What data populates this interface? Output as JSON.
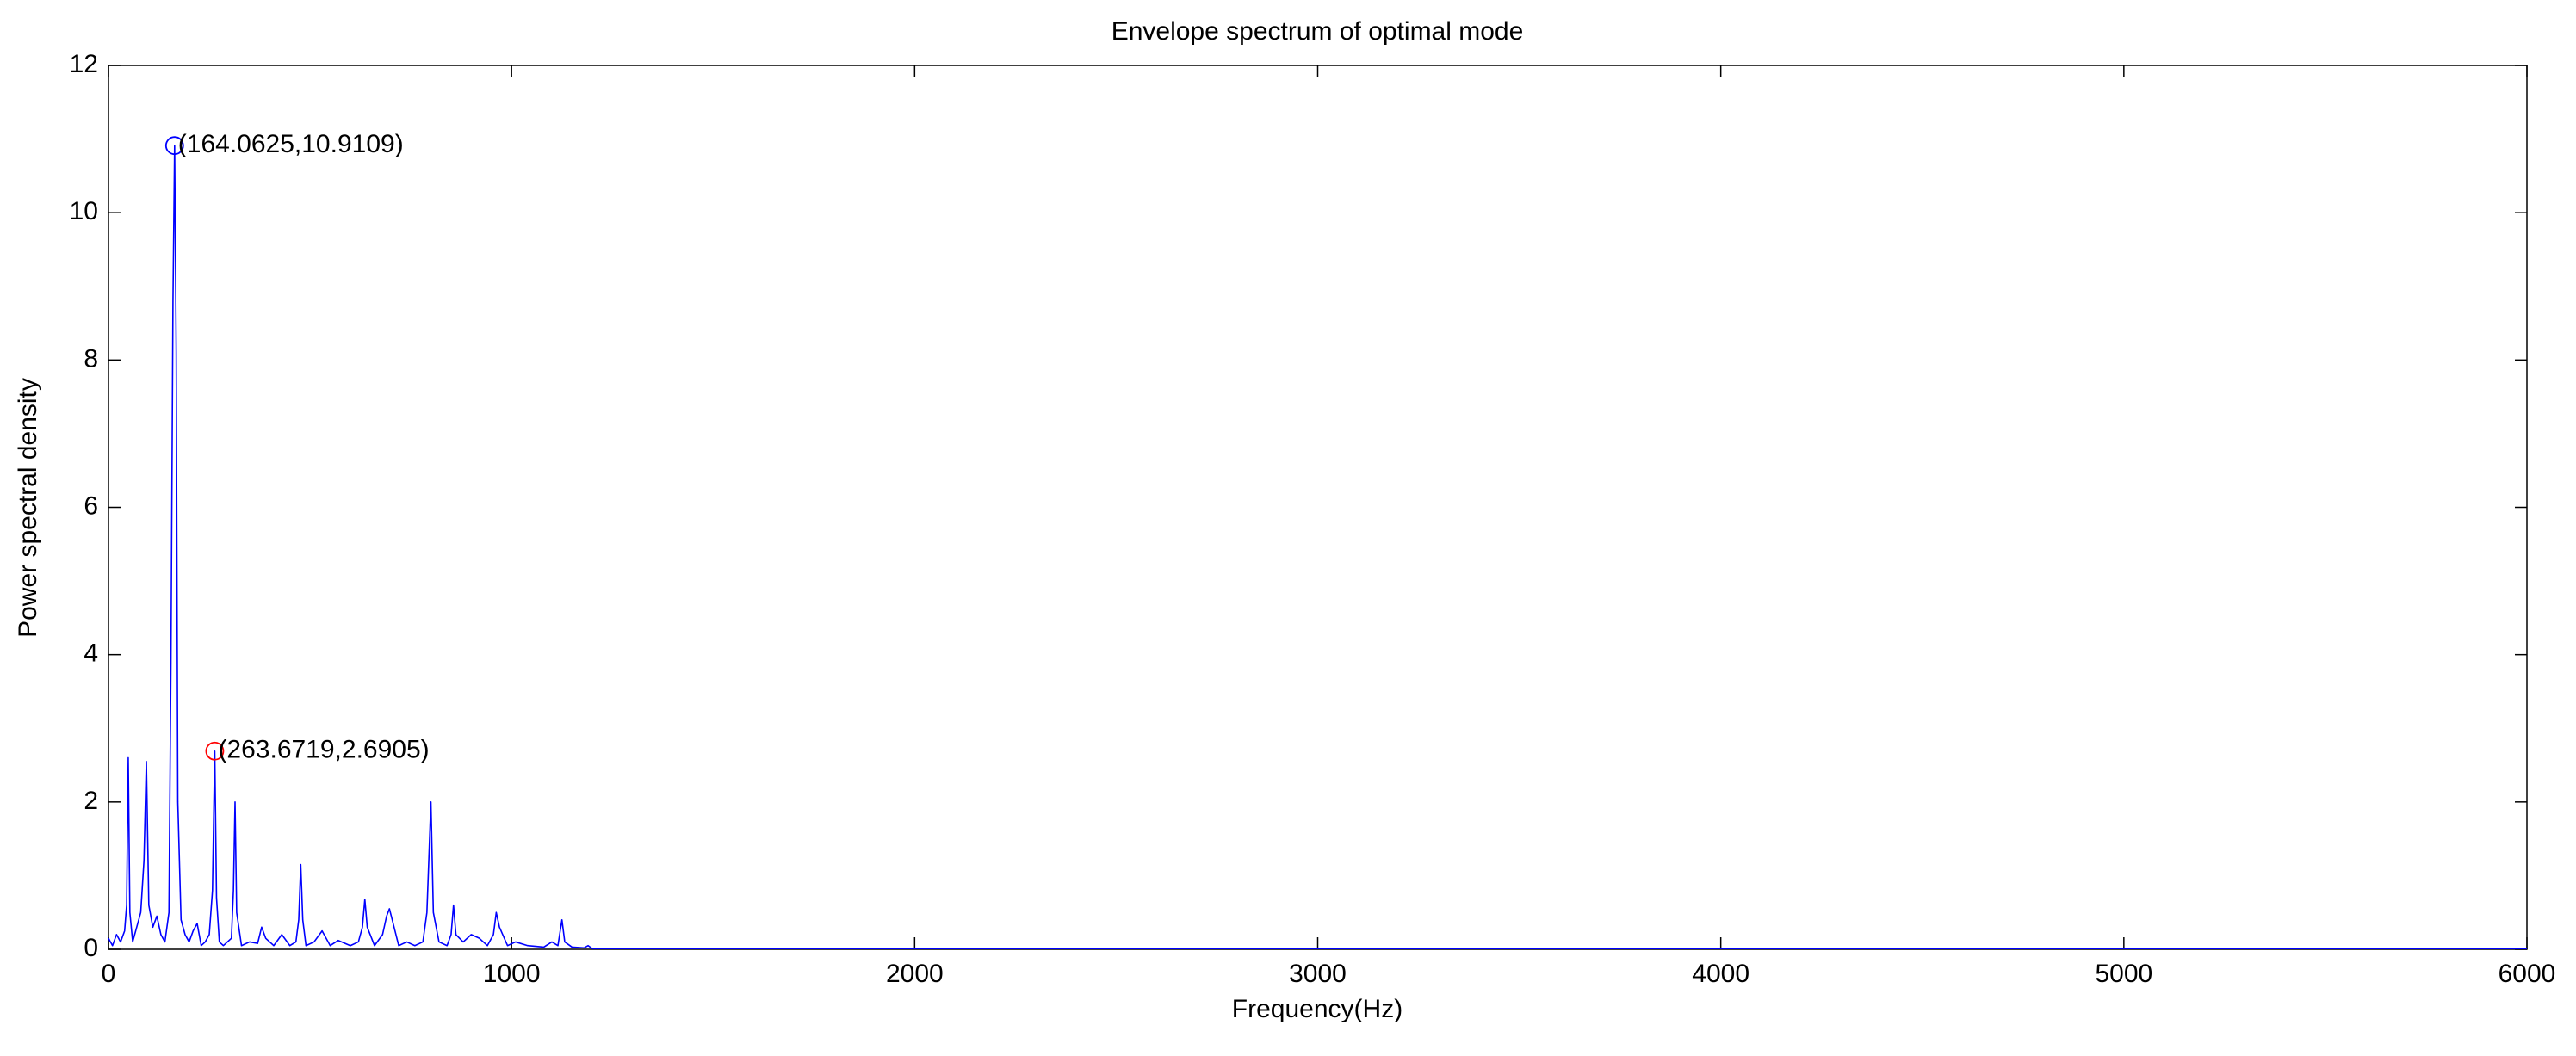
{
  "chart_data": {
    "type": "line",
    "title": "Envelope spectrum of optimal mode",
    "x_label": "Frequency(Hz)",
    "y_label": "Power spectral density",
    "xlim": [
      0,
      6000
    ],
    "ylim": [
      0,
      12
    ],
    "xticks": [
      0,
      1000,
      2000,
      3000,
      4000,
      5000,
      6000
    ],
    "yticks": [
      0,
      2,
      4,
      6,
      8,
      10,
      12
    ],
    "grid": false,
    "series": [
      {
        "color": "#0000ff",
        "x": [
          0,
          10,
          20,
          30,
          40,
          45,
          49,
          53,
          60,
          70,
          80,
          88,
          94,
          100,
          110,
          120,
          130,
          140,
          150,
          155,
          160,
          164.0625,
          168,
          172,
          180,
          190,
          200,
          210,
          220,
          230,
          240,
          250,
          258,
          263.6719,
          268,
          275,
          285,
          295,
          305,
          310,
          314,
          318,
          330,
          350,
          370,
          380,
          390,
          410,
          430,
          450,
          465,
          472,
          477,
          482,
          490,
          510,
          530,
          550,
          570,
          600,
          620,
          630,
          636,
          642,
          660,
          680,
          690,
          697,
          704,
          720,
          740,
          760,
          780,
          790,
          800,
          806,
          820,
          840,
          850,
          856,
          862,
          880,
          900,
          920,
          940,
          955,
          962,
          970,
          990,
          1010,
          1040,
          1080,
          1100,
          1115,
          1125,
          1132,
          1150,
          1180,
          1190,
          1200,
          1250,
          1500,
          2000,
          3000,
          4000,
          5000,
          6000
        ],
        "values": [
          0.15,
          0.05,
          0.2,
          0.1,
          0.25,
          0.6,
          2.6,
          0.5,
          0.1,
          0.3,
          0.5,
          1.2,
          2.55,
          0.6,
          0.3,
          0.45,
          0.2,
          0.1,
          0.5,
          3.9,
          8.8,
          10.9109,
          8.1,
          2.0,
          0.4,
          0.2,
          0.1,
          0.25,
          0.35,
          0.05,
          0.1,
          0.2,
          0.8,
          2.6905,
          0.7,
          0.1,
          0.05,
          0.1,
          0.15,
          0.8,
          2.0,
          0.5,
          0.05,
          0.1,
          0.08,
          0.3,
          0.15,
          0.05,
          0.2,
          0.05,
          0.1,
          0.4,
          1.15,
          0.4,
          0.05,
          0.1,
          0.25,
          0.05,
          0.12,
          0.05,
          0.1,
          0.3,
          0.68,
          0.3,
          0.05,
          0.2,
          0.45,
          0.55,
          0.4,
          0.05,
          0.1,
          0.05,
          0.1,
          0.5,
          2.0,
          0.5,
          0.1,
          0.05,
          0.2,
          0.6,
          0.2,
          0.1,
          0.2,
          0.15,
          0.05,
          0.2,
          0.5,
          0.3,
          0.05,
          0.1,
          0.05,
          0.03,
          0.1,
          0.05,
          0.4,
          0.1,
          0.03,
          0.02,
          0.05,
          0.01,
          0.01,
          0.01,
          0.01,
          0.01,
          0.01,
          0.01,
          0.01
        ]
      }
    ],
    "annotations": [
      {
        "x": 164.0625,
        "y": 10.9109,
        "label": "(164.0625,10.9109)",
        "color": "#0000ff"
      },
      {
        "x": 263.6719,
        "y": 2.6905,
        "label": "(263.6719,2.6905)",
        "color": "#ff0000"
      }
    ]
  }
}
